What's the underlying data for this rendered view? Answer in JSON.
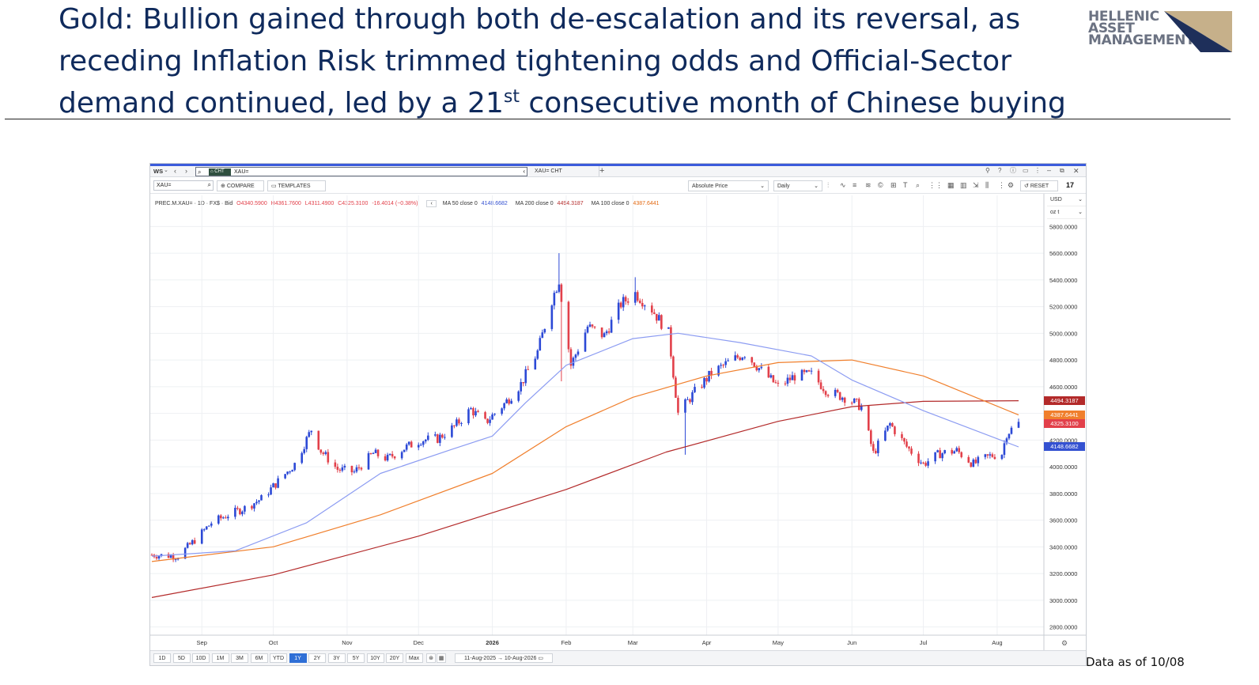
{
  "slide": {
    "title_before_sup": "Gold: Bullion gained through both de-escalation and its reversal, as receding Inflation Risk trimmed tightening odds and Official-Sector demand continued, led by a 21",
    "title_sup": "st",
    "title_after_sup": " consecutive month of Chinese buying",
    "logo_lines": [
      "HELLENIC",
      "ASSET",
      "MANAGEMENT"
    ],
    "footnote": "Data as of 10/08"
  },
  "app": {
    "workspace_label": "WS",
    "search_tag": "CHT",
    "search_value": "XAU=",
    "tab_label": "XAU= CHT",
    "instrument_input": "XAU=",
    "compare_label": "COMPARE",
    "templates_label": "TEMPLATES",
    "price_mode": "Absolute Price",
    "interval": "Daily",
    "reset_label": "RESET",
    "currency": "USD",
    "unit": "oz t",
    "legend": {
      "instrument": "PREC.M.XAU= · 1D · FX$ · Bid",
      "open": "O4340.5900",
      "high": "H4361.7600",
      "low": "L4311.4900",
      "close": "C4325.3100",
      "change": "-16.4014 (−0.38%)",
      "ma50_label": "MA 50 close 0",
      "ma50_value": "4148.6682",
      "ma200_label": "MA 200 close 0",
      "ma200_value": "4494.3187",
      "ma100_label": "MA 100 close 0",
      "ma100_value": "4387.6441"
    },
    "periods": [
      "1D",
      "5D",
      "10D",
      "1M",
      "3M",
      "6M",
      "YTD",
      "1Y",
      "2Y",
      "3Y",
      "5Y",
      "10Y",
      "20Y",
      "Max"
    ],
    "active_period": "1Y",
    "date_range": "11-Aug-2025 → 10-Aug-2026"
  },
  "colors": {
    "up": "#2c49d6",
    "down": "#e2404a",
    "ma50": "#8c9cf2",
    "ma100": "#f07f2c",
    "ma200": "#b32a2a",
    "title": "#0f2a5c"
  },
  "chart_data": {
    "type": "candlestick",
    "y_ticks": [
      2800,
      3000,
      3200,
      3400,
      3600,
      3800,
      4000,
      4200,
      4400,
      4600,
      4800,
      5000,
      5200,
      5400,
      5600,
      5800
    ],
    "y_tick_labels": [
      "2800.0000",
      "3000.0000",
      "3200.0000",
      "3400.0000",
      "3600.0000",
      "3800.0000",
      "4000.0000",
      "4200.0000",
      "4400.0000",
      "4600.0000",
      "4800.0000",
      "5000.0000",
      "5200.0000",
      "5400.0000",
      "5600.0000",
      "5800.0000"
    ],
    "ylim": [
      2750,
      5950
    ],
    "x_start": "2025-08-11",
    "x_end": "2026-08-10",
    "x_ticks": [
      {
        "date": "2025-09-01",
        "label": "Sep"
      },
      {
        "date": "2025-10-01",
        "label": "Oct"
      },
      {
        "date": "2025-11-01",
        "label": "Nov"
      },
      {
        "date": "2025-12-01",
        "label": "Dec"
      },
      {
        "date": "2026-01-01",
        "label": "2026"
      },
      {
        "date": "2026-02-01",
        "label": "Feb"
      },
      {
        "date": "2026-03-01",
        "label": "Mar"
      },
      {
        "date": "2026-04-01",
        "label": "Apr"
      },
      {
        "date": "2026-05-01",
        "label": "May"
      },
      {
        "date": "2026-06-01",
        "label": "Jun"
      },
      {
        "date": "2026-07-01",
        "label": "Jul"
      },
      {
        "date": "2026-08-01",
        "label": "Aug"
      }
    ],
    "close_path": [
      [
        "2025-08-11",
        3340
      ],
      [
        "2025-08-22",
        3330
      ],
      [
        "2025-08-29",
        3450
      ],
      [
        "2025-09-05",
        3580
      ],
      [
        "2025-09-12",
        3640
      ],
      [
        "2025-09-19",
        3690
      ],
      [
        "2025-09-26",
        3760
      ],
      [
        "2025-10-03",
        3890
      ],
      [
        "2025-10-10",
        4020
      ],
      [
        "2025-10-17",
        4280
      ],
      [
        "2025-10-21",
        4120
      ],
      [
        "2025-10-28",
        3980
      ],
      [
        "2025-11-04",
        3960
      ],
      [
        "2025-11-12",
        4100
      ],
      [
        "2025-11-18",
        4060
      ],
      [
        "2025-11-25",
        4140
      ],
      [
        "2025-12-02",
        4200
      ],
      [
        "2025-12-09",
        4210
      ],
      [
        "2025-12-16",
        4300
      ],
      [
        "2025-12-23",
        4430
      ],
      [
        "2025-12-29",
        4330
      ],
      [
        "2026-01-06",
        4470
      ],
      [
        "2026-01-13",
        4620
      ],
      [
        "2026-01-20",
        4860
      ],
      [
        "2026-01-26",
        5250
      ],
      [
        "2026-01-29",
        5400
      ],
      [
        "2026-02-03",
        4760
      ],
      [
        "2026-02-10",
        5050
      ],
      [
        "2026-02-17",
        4980
      ],
      [
        "2026-02-24",
        5220
      ],
      [
        "2026-03-02",
        5300
      ],
      [
        "2026-03-09",
        5180
      ],
      [
        "2026-03-16",
        5000
      ],
      [
        "2026-03-20",
        4400
      ],
      [
        "2026-03-27",
        4560
      ],
      [
        "2026-04-03",
        4700
      ],
      [
        "2026-04-10",
        4780
      ],
      [
        "2026-04-17",
        4850
      ],
      [
        "2026-04-24",
        4720
      ],
      [
        "2026-05-01",
        4600
      ],
      [
        "2026-05-08",
        4680
      ],
      [
        "2026-05-15",
        4690
      ],
      [
        "2026-05-22",
        4560
      ],
      [
        "2026-05-29",
        4520
      ],
      [
        "2026-06-05",
        4450
      ],
      [
        "2026-06-10",
        4100
      ],
      [
        "2026-06-17",
        4320
      ],
      [
        "2026-06-24",
        4150
      ],
      [
        "2026-07-01",
        4020
      ],
      [
        "2026-07-08",
        4100
      ],
      [
        "2026-07-15",
        4120
      ],
      [
        "2026-07-22",
        4020
      ],
      [
        "2026-07-29",
        4080
      ],
      [
        "2026-08-03",
        4100
      ],
      [
        "2026-08-05",
        4250
      ],
      [
        "2026-08-10",
        4325
      ]
    ],
    "spikes": [
      {
        "date": "2026-01-29",
        "high": 5600
      },
      {
        "date": "2026-01-30",
        "low": 4640
      },
      {
        "date": "2026-03-02",
        "high": 5420
      },
      {
        "date": "2026-03-23",
        "low": 4090
      }
    ],
    "ma50": [
      [
        "2025-08-11",
        3330
      ],
      [
        "2025-09-15",
        3370
      ],
      [
        "2025-10-15",
        3580
      ],
      [
        "2025-11-15",
        3950
      ],
      [
        "2025-12-15",
        4130
      ],
      [
        "2026-01-01",
        4230
      ],
      [
        "2026-01-15",
        4480
      ],
      [
        "2026-02-01",
        4760
      ],
      [
        "2026-03-01",
        4960
      ],
      [
        "2026-03-20",
        5000
      ],
      [
        "2026-04-15",
        4930
      ],
      [
        "2026-05-15",
        4830
      ],
      [
        "2026-06-01",
        4650
      ],
      [
        "2026-07-01",
        4420
      ],
      [
        "2026-08-10",
        4148.67
      ]
    ],
    "ma100": [
      [
        "2025-08-11",
        3290
      ],
      [
        "2025-10-01",
        3400
      ],
      [
        "2025-11-15",
        3640
      ],
      [
        "2026-01-01",
        3950
      ],
      [
        "2026-02-01",
        4300
      ],
      [
        "2026-03-01",
        4520
      ],
      [
        "2026-04-01",
        4680
      ],
      [
        "2026-05-01",
        4780
      ],
      [
        "2026-06-01",
        4800
      ],
      [
        "2026-07-01",
        4680
      ],
      [
        "2026-08-10",
        4387.64
      ]
    ],
    "ma200": [
      [
        "2025-08-11",
        3020
      ],
      [
        "2025-10-01",
        3190
      ],
      [
        "2025-12-01",
        3480
      ],
      [
        "2026-02-01",
        3830
      ],
      [
        "2026-03-15",
        4110
      ],
      [
        "2026-05-01",
        4340
      ],
      [
        "2026-06-01",
        4450
      ],
      [
        "2026-07-01",
        4490
      ],
      [
        "2026-08-10",
        4494.32
      ]
    ],
    "last_values": [
      {
        "label": "4494.3187",
        "value": 4494.32,
        "series": "ma200"
      },
      {
        "label": "4387.6441",
        "value": 4387.64,
        "series": "ma100"
      },
      {
        "label": "4325.3100",
        "value": 4325.31,
        "series": "close"
      },
      {
        "label": "4148.6682",
        "value": 4148.67,
        "series": "ma50"
      }
    ]
  }
}
